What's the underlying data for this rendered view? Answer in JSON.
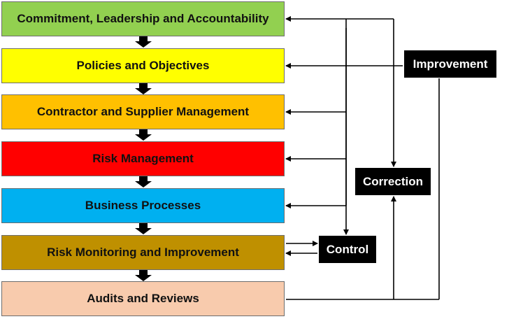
{
  "steps": [
    {
      "label": "Commitment, Leadership and Accountability",
      "color": "#92d050"
    },
    {
      "label": "Policies and Objectives",
      "color": "#ffff00"
    },
    {
      "label": "Contractor and Supplier Management",
      "color": "#ffc000"
    },
    {
      "label": "Risk Management",
      "color": "#ff0000"
    },
    {
      "label": "Business Processes",
      "color": "#00b0f0"
    },
    {
      "label": "Risk Monitoring and Improvement",
      "color": "#bf9000"
    },
    {
      "label": "Audits and Reviews",
      "color": "#f8cbad"
    }
  ],
  "loops": {
    "improvement": "Improvement",
    "correction": "Correction",
    "control": "Control"
  }
}
